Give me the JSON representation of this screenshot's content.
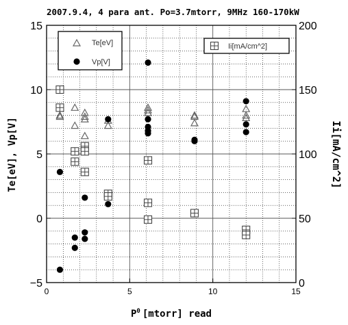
{
  "chart_data": {
    "type": "scatter",
    "title": "2007.9.4,  4  para  ant.  Po=3.7mtorr,  9MHz  160-170kW",
    "xlabel_main": "P",
    "xlabel_sub": "0",
    "xlabel_rest": "[mtorr]  read",
    "ylabel_left": "Te[eV],  Vp[V]",
    "ylabel_right": "Ii[mA/cm^2]",
    "xlim": [
      0,
      15
    ],
    "ylim_left": [
      -5,
      15
    ],
    "ylim_right": [
      0,
      200
    ],
    "x_ticks": [
      "0",
      "5",
      "10",
      "15"
    ],
    "y_left_ticks": [
      "-5",
      "0",
      "5",
      "10",
      "15"
    ],
    "y_right_ticks": [
      "0",
      "50",
      "100",
      "150",
      "200"
    ],
    "grid": true,
    "legend_left": [
      {
        "name": "Te[eV]",
        "marker": "triangle-open"
      },
      {
        "name": "Vp[V]",
        "marker": "circle-filled"
      }
    ],
    "legend_right": [
      {
        "name": "Ii[mA/cm^2]",
        "marker": "square-plus"
      }
    ],
    "series": [
      {
        "name": "Te[eV]",
        "axis": "left",
        "marker": "triangle-open",
        "points": [
          [
            0.8,
            8.0
          ],
          [
            0.8,
            7.9
          ],
          [
            1.7,
            8.6
          ],
          [
            1.7,
            7.2
          ],
          [
            2.3,
            8.2
          ],
          [
            2.3,
            7.9
          ],
          [
            2.3,
            7.7
          ],
          [
            2.3,
            6.4
          ],
          [
            3.7,
            7.6
          ],
          [
            3.7,
            7.2
          ],
          [
            6.1,
            8.6
          ],
          [
            6.1,
            8.4
          ],
          [
            6.1,
            8.2
          ],
          [
            8.9,
            8.0
          ],
          [
            8.9,
            7.9
          ],
          [
            8.9,
            7.4
          ],
          [
            12.0,
            8.5
          ],
          [
            12.0,
            8.0
          ],
          [
            12.0,
            7.8
          ]
        ]
      },
      {
        "name": "Vp[V]",
        "axis": "left",
        "marker": "circle-filled",
        "points": [
          [
            0.8,
            3.6
          ],
          [
            0.8,
            -4.0
          ],
          [
            1.7,
            -1.5
          ],
          [
            1.7,
            -2.3
          ],
          [
            2.3,
            1.6
          ],
          [
            2.3,
            -1.1
          ],
          [
            2.3,
            -1.6
          ],
          [
            3.7,
            7.7
          ],
          [
            3.7,
            1.1
          ],
          [
            6.1,
            12.1
          ],
          [
            6.1,
            7.7
          ],
          [
            6.1,
            7.1
          ],
          [
            6.1,
            6.8
          ],
          [
            6.1,
            6.6
          ],
          [
            8.9,
            6.1
          ],
          [
            8.9,
            6.0
          ],
          [
            12.0,
            9.1
          ],
          [
            12.0,
            7.3
          ],
          [
            12.0,
            6.7
          ]
        ]
      },
      {
        "name": "Ii[mA/cm^2]",
        "axis": "right",
        "marker": "square-plus",
        "points": [
          [
            0.8,
            150
          ],
          [
            0.8,
            136
          ],
          [
            1.7,
            102
          ],
          [
            1.7,
            94
          ],
          [
            2.3,
            106
          ],
          [
            2.3,
            102
          ],
          [
            2.3,
            86
          ],
          [
            3.7,
            69
          ],
          [
            3.7,
            67
          ],
          [
            6.1,
            95
          ],
          [
            6.1,
            62
          ],
          [
            6.1,
            49
          ],
          [
            8.9,
            54
          ],
          [
            12.0,
            41
          ],
          [
            12.0,
            37
          ]
        ]
      }
    ]
  }
}
